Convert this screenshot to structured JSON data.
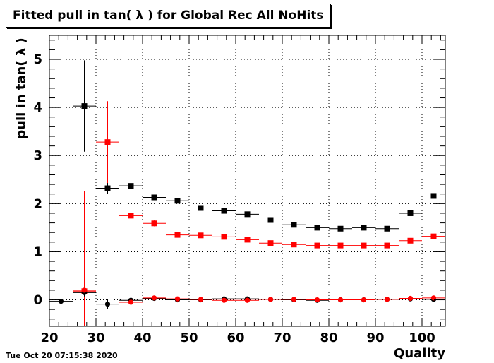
{
  "title": "Fitted pull in tan( λ ) for Global Rec All NoHits",
  "timestamp": "Tue Oct 20 07:15:38 2020",
  "chart_data": {
    "type": "scatter",
    "title": "Fitted pull in tan( λ ) for Global Rec All NoHits",
    "xlabel": "Quality",
    "ylabel": "pull in tan( λ )",
    "xlim": [
      20,
      105
    ],
    "ylim": [
      -0.55,
      5.5
    ],
    "xticks": [
      "20",
      "30",
      "40",
      "50",
      "60",
      "70",
      "80",
      "90",
      "100"
    ],
    "yticks": [
      "0",
      "1",
      "2",
      "3",
      "4",
      "5"
    ],
    "grid": true,
    "series": [
      {
        "marker": "square",
        "color": "#000000",
        "points": [
          {
            "x": 27.5,
            "y": 4.03,
            "xerr": 2.5,
            "yerr": 0.95
          },
          {
            "x": 32.5,
            "y": 2.32,
            "xerr": 2.5,
            "yerr": 0.12
          },
          {
            "x": 37.5,
            "y": 2.37,
            "xerr": 2.5,
            "yerr": 0.1
          },
          {
            "x": 42.5,
            "y": 2.13,
            "xerr": 2.5,
            "yerr": 0.04
          },
          {
            "x": 47.5,
            "y": 2.06,
            "xerr": 2.5,
            "yerr": 0.03
          },
          {
            "x": 52.5,
            "y": 1.91,
            "xerr": 2.5,
            "yerr": 0.03
          },
          {
            "x": 57.5,
            "y": 1.85,
            "xerr": 2.5,
            "yerr": 0.03
          },
          {
            "x": 62.5,
            "y": 1.78,
            "xerr": 2.5,
            "yerr": 0.02
          },
          {
            "x": 67.5,
            "y": 1.66,
            "xerr": 2.5,
            "yerr": 0.02
          },
          {
            "x": 72.5,
            "y": 1.56,
            "xerr": 2.5,
            "yerr": 0.02
          },
          {
            "x": 77.5,
            "y": 1.5,
            "xerr": 2.5,
            "yerr": 0.02
          },
          {
            "x": 82.5,
            "y": 1.48,
            "xerr": 2.5,
            "yerr": 0.02
          },
          {
            "x": 87.5,
            "y": 1.5,
            "xerr": 2.5,
            "yerr": 0.02
          },
          {
            "x": 92.5,
            "y": 1.48,
            "xerr": 2.5,
            "yerr": 0.02
          },
          {
            "x": 97.5,
            "y": 1.8,
            "xerr": 2.5,
            "yerr": 0.02
          },
          {
            "x": 102.5,
            "y": 2.16,
            "xerr": 2.5,
            "yerr": 0.02
          }
        ]
      },
      {
        "marker": "square",
        "color": "#ff0000",
        "points": [
          {
            "x": 27.5,
            "y": 0.18,
            "xerr": 2.5,
            "yerr": 2.08
          },
          {
            "x": 32.5,
            "y": 3.28,
            "xerr": 2.5,
            "yerr": 0.85
          },
          {
            "x": 37.5,
            "y": 1.75,
            "xerr": 2.5,
            "yerr": 0.12
          },
          {
            "x": 42.5,
            "y": 1.59,
            "xerr": 2.5,
            "yerr": 0.06
          },
          {
            "x": 47.5,
            "y": 1.35,
            "xerr": 2.5,
            "yerr": 0.03
          },
          {
            "x": 52.5,
            "y": 1.34,
            "xerr": 2.5,
            "yerr": 0.03
          },
          {
            "x": 57.5,
            "y": 1.31,
            "xerr": 2.5,
            "yerr": 0.03
          },
          {
            "x": 62.5,
            "y": 1.25,
            "xerr": 2.5,
            "yerr": 0.02
          },
          {
            "x": 67.5,
            "y": 1.18,
            "xerr": 2.5,
            "yerr": 0.02
          },
          {
            "x": 72.5,
            "y": 1.15,
            "xerr": 2.5,
            "yerr": 0.02
          },
          {
            "x": 77.5,
            "y": 1.13,
            "xerr": 2.5,
            "yerr": 0.02
          },
          {
            "x": 82.5,
            "y": 1.13,
            "xerr": 2.5,
            "yerr": 0.02
          },
          {
            "x": 87.5,
            "y": 1.13,
            "xerr": 2.5,
            "yerr": 0.02
          },
          {
            "x": 92.5,
            "y": 1.13,
            "xerr": 2.5,
            "yerr": 0.02
          },
          {
            "x": 97.5,
            "y": 1.23,
            "xerr": 2.5,
            "yerr": 0.02
          },
          {
            "x": 102.5,
            "y": 1.32,
            "xerr": 2.5,
            "yerr": 0.02
          }
        ]
      },
      {
        "marker": "circle",
        "color": "#000000",
        "points": [
          {
            "x": 22.5,
            "y": -0.03,
            "xerr": 2.5,
            "yerr": 0.05
          },
          {
            "x": 27.5,
            "y": 0.15,
            "xerr": 2.5,
            "yerr": 0.08
          },
          {
            "x": 32.5,
            "y": -0.09,
            "xerr": 2.5,
            "yerr": 0.1
          },
          {
            "x": 37.5,
            "y": -0.01,
            "xerr": 2.5,
            "yerr": 0.05
          },
          {
            "x": 42.5,
            "y": 0.03,
            "xerr": 2.5,
            "yerr": 0.03
          },
          {
            "x": 47.5,
            "y": 0.0,
            "xerr": 2.5,
            "yerr": 0.02
          },
          {
            "x": 52.5,
            "y": 0.0,
            "xerr": 2.5,
            "yerr": 0.02
          },
          {
            "x": 57.5,
            "y": 0.02,
            "xerr": 2.5,
            "yerr": 0.02
          },
          {
            "x": 62.5,
            "y": 0.02,
            "xerr": 2.5,
            "yerr": 0.02
          },
          {
            "x": 67.5,
            "y": 0.01,
            "xerr": 2.5,
            "yerr": 0.02
          },
          {
            "x": 72.5,
            "y": 0.0,
            "xerr": 2.5,
            "yerr": 0.02
          },
          {
            "x": 77.5,
            "y": -0.01,
            "xerr": 2.5,
            "yerr": 0.02
          },
          {
            "x": 82.5,
            "y": 0.0,
            "xerr": 2.5,
            "yerr": 0.02
          },
          {
            "x": 87.5,
            "y": 0.0,
            "xerr": 2.5,
            "yerr": 0.02
          },
          {
            "x": 92.5,
            "y": 0.01,
            "xerr": 2.5,
            "yerr": 0.02
          },
          {
            "x": 97.5,
            "y": 0.02,
            "xerr": 2.5,
            "yerr": 0.02
          },
          {
            "x": 102.5,
            "y": 0.01,
            "xerr": 2.5,
            "yerr": 0.02
          }
        ]
      },
      {
        "marker": "circle",
        "color": "#ff0000",
        "points": [
          {
            "x": 27.5,
            "y": 0.2,
            "xerr": 2.5,
            "yerr": 0.05
          },
          {
            "x": 37.5,
            "y": -0.05,
            "xerr": 2.5,
            "yerr": 0.05
          },
          {
            "x": 42.5,
            "y": 0.04,
            "xerr": 2.5,
            "yerr": 0.04
          },
          {
            "x": 47.5,
            "y": 0.02,
            "xerr": 2.5,
            "yerr": 0.02
          },
          {
            "x": 52.5,
            "y": 0.01,
            "xerr": 2.5,
            "yerr": 0.02
          },
          {
            "x": 57.5,
            "y": -0.01,
            "xerr": 2.5,
            "yerr": 0.02
          },
          {
            "x": 62.5,
            "y": -0.01,
            "xerr": 2.5,
            "yerr": 0.02
          },
          {
            "x": 67.5,
            "y": 0.01,
            "xerr": 2.5,
            "yerr": 0.02
          },
          {
            "x": 72.5,
            "y": 0.01,
            "xerr": 2.5,
            "yerr": 0.02
          },
          {
            "x": 77.5,
            "y": 0.0,
            "xerr": 2.5,
            "yerr": 0.02
          },
          {
            "x": 82.5,
            "y": 0.0,
            "xerr": 2.5,
            "yerr": 0.02
          },
          {
            "x": 87.5,
            "y": 0.0,
            "xerr": 2.5,
            "yerr": 0.02
          },
          {
            "x": 92.5,
            "y": 0.01,
            "xerr": 2.5,
            "yerr": 0.02
          },
          {
            "x": 97.5,
            "y": 0.03,
            "xerr": 2.5,
            "yerr": 0.02
          },
          {
            "x": 102.5,
            "y": 0.04,
            "xerr": 2.5,
            "yerr": 0.02
          }
        ]
      }
    ]
  }
}
